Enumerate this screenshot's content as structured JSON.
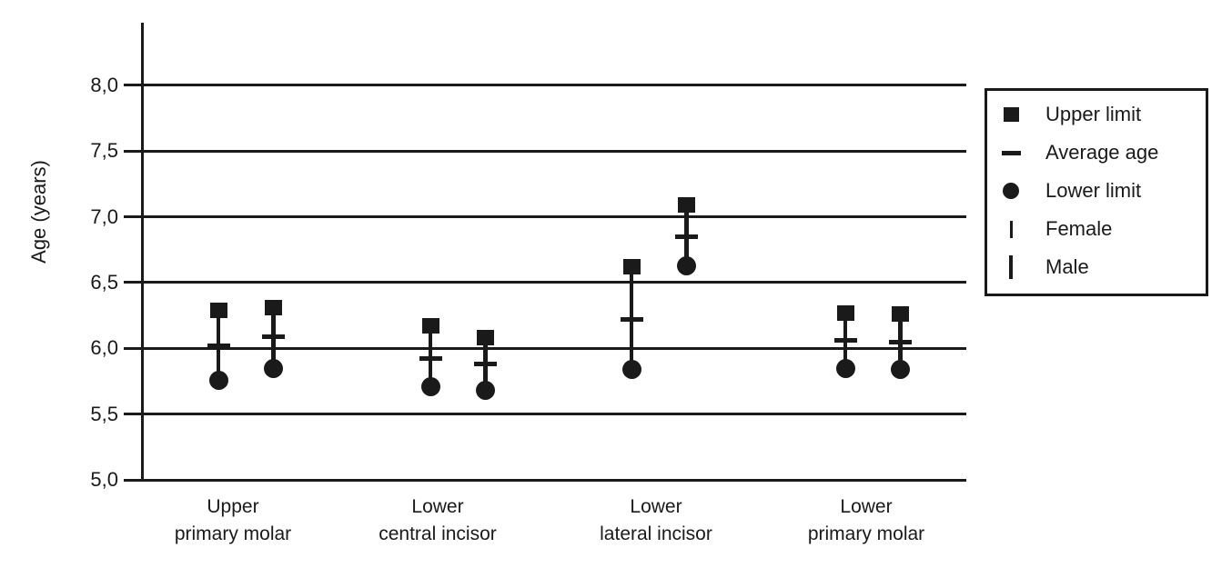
{
  "figure": {
    "background_color": "#ffffff",
    "ink_color": "#1a1a1a"
  },
  "chart_data": {
    "type": "scatter",
    "title": "",
    "xlabel": "",
    "ylabel": "Age (years)",
    "ylim": [
      5.0,
      8.0
    ],
    "grid": true,
    "legend_position": "top-right",
    "ytick_labels": [
      "8,0",
      "7,5",
      "7,0",
      "6,5",
      "6,0",
      "5,5",
      "5,0"
    ],
    "ytick_values": [
      8.0,
      7.5,
      7.0,
      6.5,
      6.0,
      5.5,
      5.0
    ],
    "categories": [
      "Upper primary molar",
      "Lower central incisor",
      "Lower lateral incisor",
      "Lower primary molar"
    ],
    "category_label_lines": [
      [
        "Upper",
        "primary molar"
      ],
      [
        "Lower",
        "central incisor"
      ],
      [
        "Lower",
        "lateral incisor"
      ],
      [
        "Lower",
        "primary molar"
      ]
    ],
    "series": [
      {
        "name": "Female",
        "points": [
          {
            "category": "Upper primary molar",
            "upper_limit": 6.29,
            "average_age": 6.02,
            "lower_limit": 5.76
          },
          {
            "category": "Lower central incisor",
            "upper_limit": 6.17,
            "average_age": 5.92,
            "lower_limit": 5.71
          },
          {
            "category": "Lower lateral incisor",
            "upper_limit": 6.62,
            "average_age": 6.22,
            "lower_limit": 5.84
          },
          {
            "category": "Lower primary molar",
            "upper_limit": 6.27,
            "average_age": 6.06,
            "lower_limit": 5.85
          }
        ]
      },
      {
        "name": "Male",
        "points": [
          {
            "category": "Upper primary molar",
            "upper_limit": 6.31,
            "average_age": 6.09,
            "lower_limit": 5.85
          },
          {
            "category": "Lower central incisor",
            "upper_limit": 6.08,
            "average_age": 5.88,
            "lower_limit": 5.68
          },
          {
            "category": "Lower lateral incisor",
            "upper_limit": 7.09,
            "average_age": 6.85,
            "lower_limit": 6.63
          },
          {
            "category": "Lower primary molar",
            "upper_limit": 6.26,
            "average_age": 6.05,
            "lower_limit": 5.84
          }
        ]
      }
    ],
    "legend": [
      {
        "marker": "square",
        "label": "Upper limit"
      },
      {
        "marker": "dash",
        "label": "Average age"
      },
      {
        "marker": "circle",
        "label": "Lower limit"
      },
      {
        "marker": "vline-thin",
        "label": "Female"
      },
      {
        "marker": "vline-thick",
        "label": "Male"
      }
    ]
  }
}
